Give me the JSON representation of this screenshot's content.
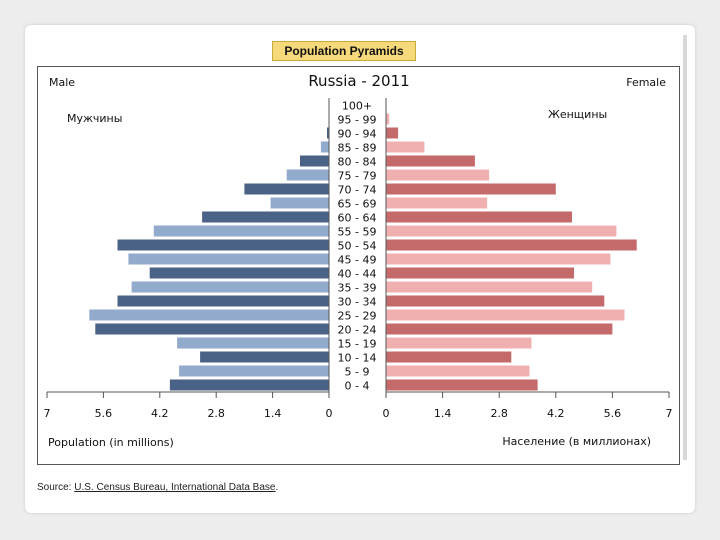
{
  "header": {
    "badge": "Population Pyramids"
  },
  "chart_data": {
    "type": "bar",
    "title": "Russia - 2011",
    "left_label": "Male",
    "right_label": "Female",
    "left_label_ru": "Мужчины",
    "right_label_ru": "Женщины",
    "xlabel_left": "Population (in millions)",
    "xlabel_right": "Население (в миллионах)",
    "xlim": [
      0,
      7
    ],
    "x_ticks": [
      "7",
      "5.6",
      "4.2",
      "2.8",
      "1.4",
      "0",
      "0",
      "1.4",
      "2.8",
      "4.2",
      "5.6",
      "7"
    ],
    "categories": [
      "0 - 4",
      "5 - 9",
      "10 - 14",
      "15 - 19",
      "20 - 24",
      "25 - 29",
      "30 - 34",
      "35 - 39",
      "40 - 44",
      "45 - 49",
      "50 - 54",
      "55 - 59",
      "60 - 64",
      "65 - 69",
      "70 - 74",
      "75 - 79",
      "80 - 84",
      "85 - 89",
      "90 - 94",
      "95 - 99",
      "100+"
    ],
    "series": [
      {
        "name": "Male",
        "values": [
          3.95,
          3.72,
          3.2,
          3.77,
          5.8,
          5.95,
          5.25,
          4.9,
          4.45,
          4.98,
          5.25,
          4.35,
          3.15,
          1.45,
          2.1,
          1.05,
          0.72,
          0.2,
          0.05,
          0.01,
          0.0
        ]
      },
      {
        "name": "Female",
        "values": [
          3.75,
          3.55,
          3.1,
          3.6,
          5.6,
          5.9,
          5.4,
          5.1,
          4.65,
          5.55,
          6.2,
          5.7,
          4.6,
          2.5,
          4.2,
          2.55,
          2.2,
          0.95,
          0.3,
          0.08,
          0.01
        ]
      }
    ],
    "colors": {
      "male_dark": "#4a6285",
      "male_light": "#92aacb",
      "female_dark": "#c46a6a",
      "female_light": "#f0b0b0"
    }
  },
  "source": {
    "prefix": "Source: ",
    "link": "U.S. Census Bureau, International Data Base",
    "suffix": "."
  }
}
